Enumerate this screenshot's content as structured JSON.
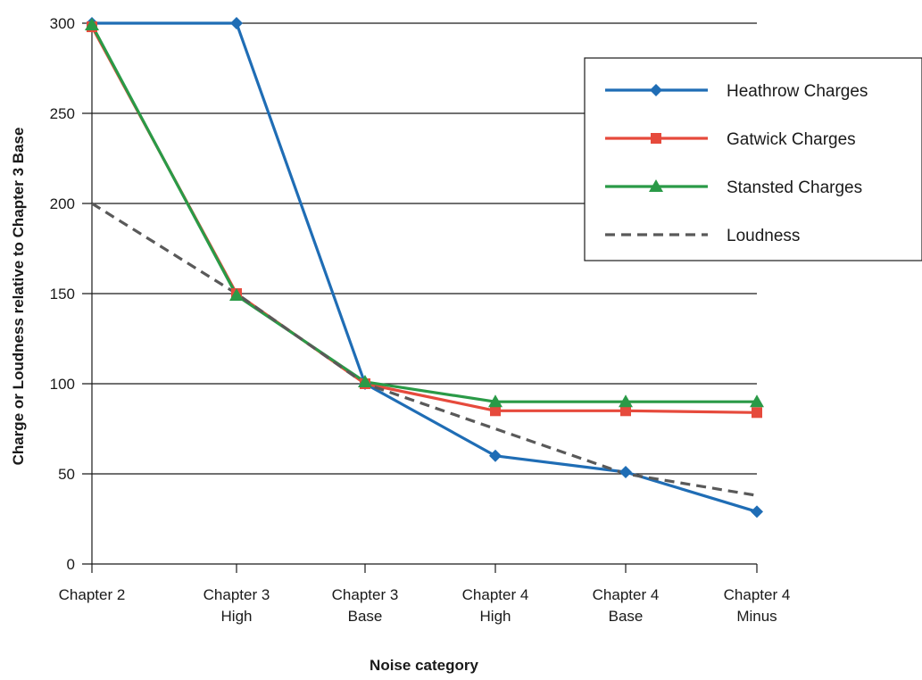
{
  "chart_data": {
    "type": "line",
    "title": "",
    "xlabel": "Noise category",
    "ylabel": "Charge or Loudness relative to Chapter 3 Base",
    "categories": [
      [
        "Chapter 2"
      ],
      [
        "Chapter 3",
        "High"
      ],
      [
        "Chapter 3",
        "Base"
      ],
      [
        "Chapter 4",
        "High"
      ],
      [
        "Chapter 4",
        "Base"
      ],
      [
        "Chapter 4",
        "Minus"
      ]
    ],
    "ylim": [
      0,
      300
    ],
    "yticks": [
      0,
      50,
      100,
      150,
      200,
      250,
      300
    ],
    "grid": "horizontal",
    "legend_position": "top-right",
    "series": [
      {
        "name": "Heathrow Charges",
        "values": [
          300,
          300,
          100,
          60,
          51,
          29
        ],
        "color": "#1f6db5",
        "marker": "diamond",
        "dash": "solid"
      },
      {
        "name": "Gatwick Charges",
        "values": [
          298,
          150,
          100,
          85,
          85,
          84
        ],
        "color": "#e64a3c",
        "marker": "square",
        "dash": "solid"
      },
      {
        "name": "Stansted Charges",
        "values": [
          299,
          149,
          101,
          90,
          90,
          90
        ],
        "color": "#2a9a47",
        "marker": "triangle",
        "dash": "solid"
      },
      {
        "name": "Loudness",
        "values": [
          200,
          150,
          100,
          75,
          50,
          38
        ],
        "color": "#595959",
        "marker": "none",
        "dash": "dashed"
      }
    ]
  }
}
